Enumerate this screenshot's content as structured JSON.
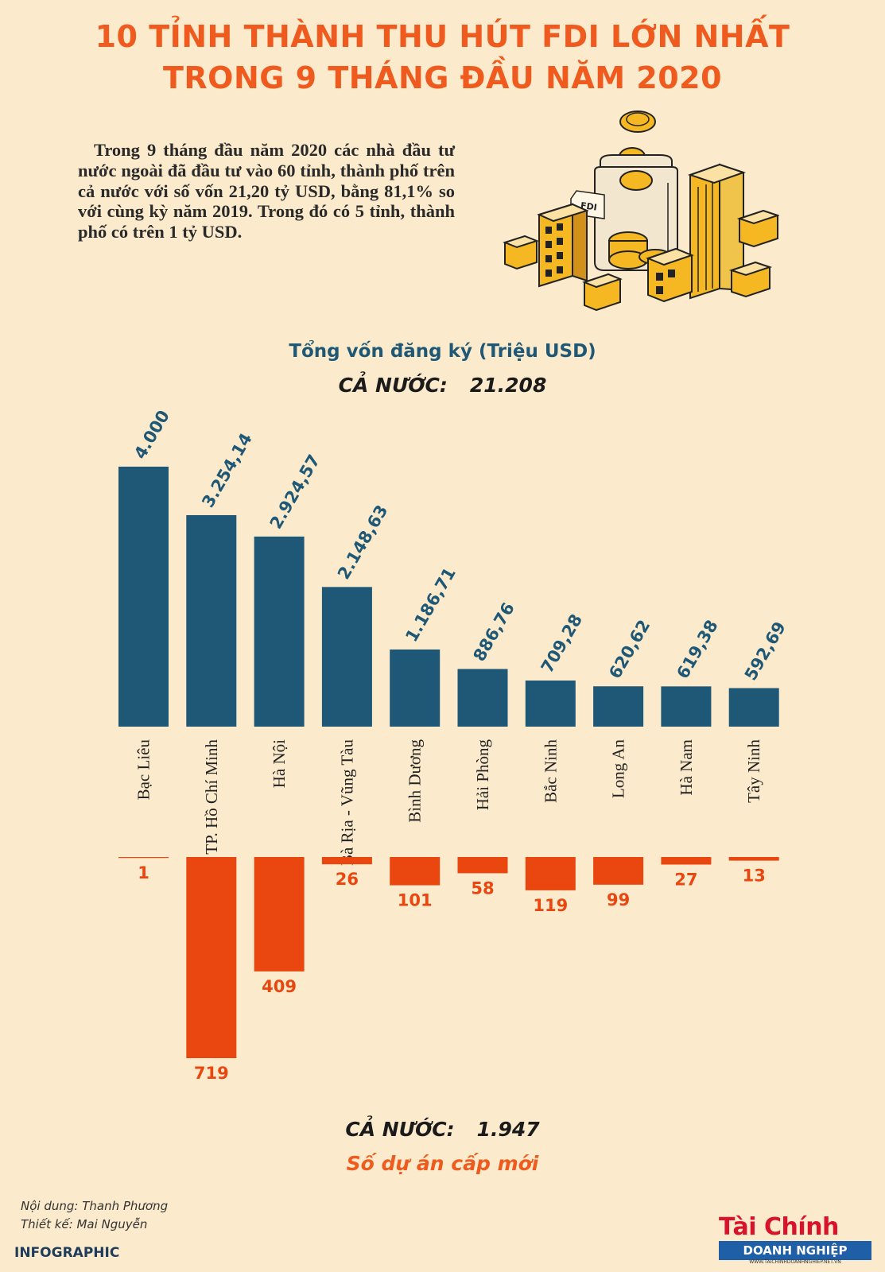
{
  "header": {
    "title_line1": "10 TỈNH THÀNH THU HÚT FDI LỚN NHẤT",
    "title_line2": "TRONG 9 THÁNG ĐẦU NĂM 2020"
  },
  "intro": "Trong 9 tháng đầu năm 2020 các nhà đầu tư nước ngoài đã đầu tư vào 60 tỉnh, thành phố trên cả nước với số vốn 21,20 tỷ USD, bằng 81,1% so với cùng kỳ năm 2019. Trong đó có 5 tỉnh, thành phố có trên 1 tỷ USD.",
  "illustration": {
    "tag_label": "FDI"
  },
  "chart_data": {
    "type": "bar",
    "title": "Tổng vốn đăng ký (Triệu USD)",
    "total_capital_label": "CẢ NƯỚC:",
    "total_capital_value": "21.208",
    "categories": [
      "Bạc Liêu",
      "TP. Hồ Chí Minh",
      "Hà Nội",
      "Bà Rịa - Vũng Tàu",
      "Bình Dương",
      "Hải Phòng",
      "Bắc Ninh",
      "Long An",
      "Hà Nam",
      "Tây Ninh"
    ],
    "series": [
      {
        "name": "Tổng vốn đăng ký (Triệu USD)",
        "values": [
          4000,
          3254.14,
          2924.57,
          2148.63,
          1186.71,
          886.76,
          709.28,
          620.62,
          619.38,
          592.69
        ],
        "labels": [
          "4.000",
          "3.254,14",
          "2.924,57",
          "2.148,63",
          "1.186,71",
          "886,76",
          "709,28",
          "620,62",
          "619,38",
          "592,69"
        ],
        "color": "#1f5876"
      },
      {
        "name": "Số dự án cấp mới",
        "values": [
          1,
          719,
          409,
          26,
          101,
          58,
          119,
          99,
          27,
          13
        ],
        "labels": [
          "1",
          "719",
          "409",
          "26",
          "101",
          "58",
          "119",
          "99",
          "27",
          "13"
        ],
        "color": "#e9470f"
      }
    ],
    "total_projects_label": "CẢ NƯỚC:",
    "total_projects_value": "1.947",
    "projects_label": "Số dự án cấp mới"
  },
  "footer": {
    "content_credit": "Nội dung: Thanh Phương",
    "design_credit": "Thiết kế: Mai Nguyễn",
    "tag": "INFOGRAPHIC",
    "logo_top": "Tài Chính",
    "logo_bottom": "DOANH NGHIỆP",
    "logo_url": "WWW.TAICHINHDOANHNGHIEP.NET.VN"
  }
}
